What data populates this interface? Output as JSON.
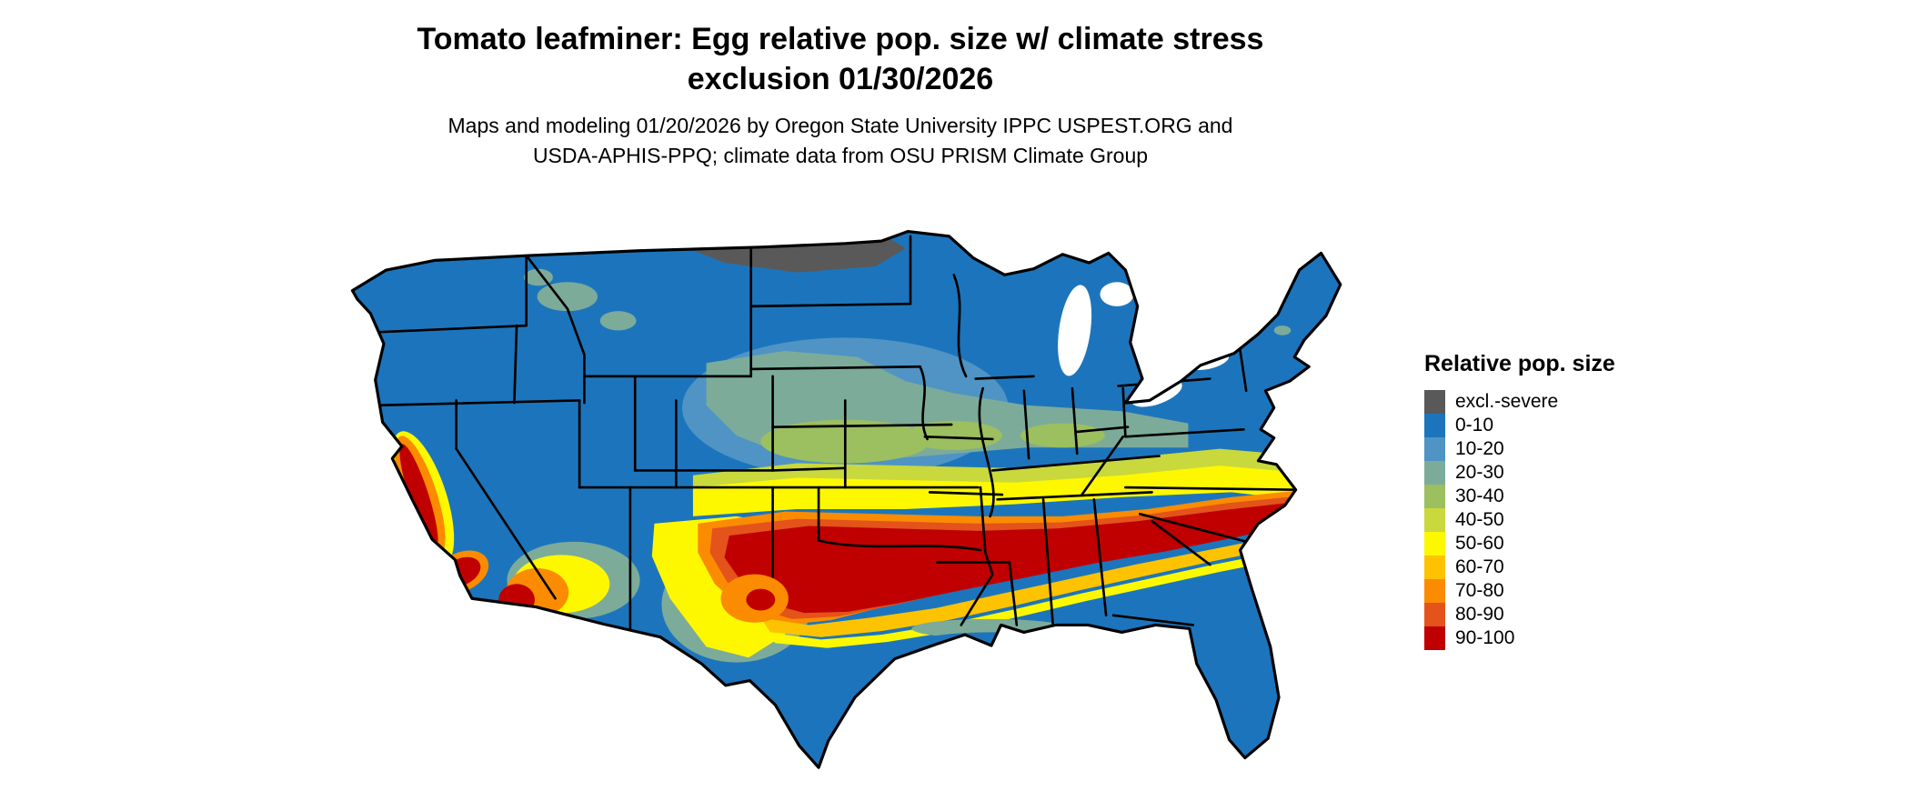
{
  "title": {
    "line1": "Tomato leafminer: Egg relative pop. size w/ climate stress",
    "line2": "exclusion 01/30/2026"
  },
  "subtitle": {
    "line1": "Maps and modeling 01/20/2026 by Oregon State University IPPC USPEST.ORG and",
    "line2": "USDA-APHIS-PPQ; climate data from OSU PRISM Climate Group"
  },
  "legend": {
    "title": "Relative pop. size",
    "items": [
      {
        "label": "excl.-severe",
        "color": "#595959"
      },
      {
        "label": "0-10",
        "color": "#1c75bc"
      },
      {
        "label": "10-20",
        "color": "#4f94c4"
      },
      {
        "label": "20-30",
        "color": "#7dab9a"
      },
      {
        "label": "30-40",
        "color": "#9cbf5f"
      },
      {
        "label": "40-50",
        "color": "#c9d83c"
      },
      {
        "label": "50-60",
        "color": "#fdf800"
      },
      {
        "label": "60-70",
        "color": "#fdc300"
      },
      {
        "label": "70-80",
        "color": "#fb8b00"
      },
      {
        "label": "80-90",
        "color": "#e3531a"
      },
      {
        "label": "90-100",
        "color": "#c00000"
      }
    ]
  },
  "map": {
    "region": "Contiguous United States"
  }
}
